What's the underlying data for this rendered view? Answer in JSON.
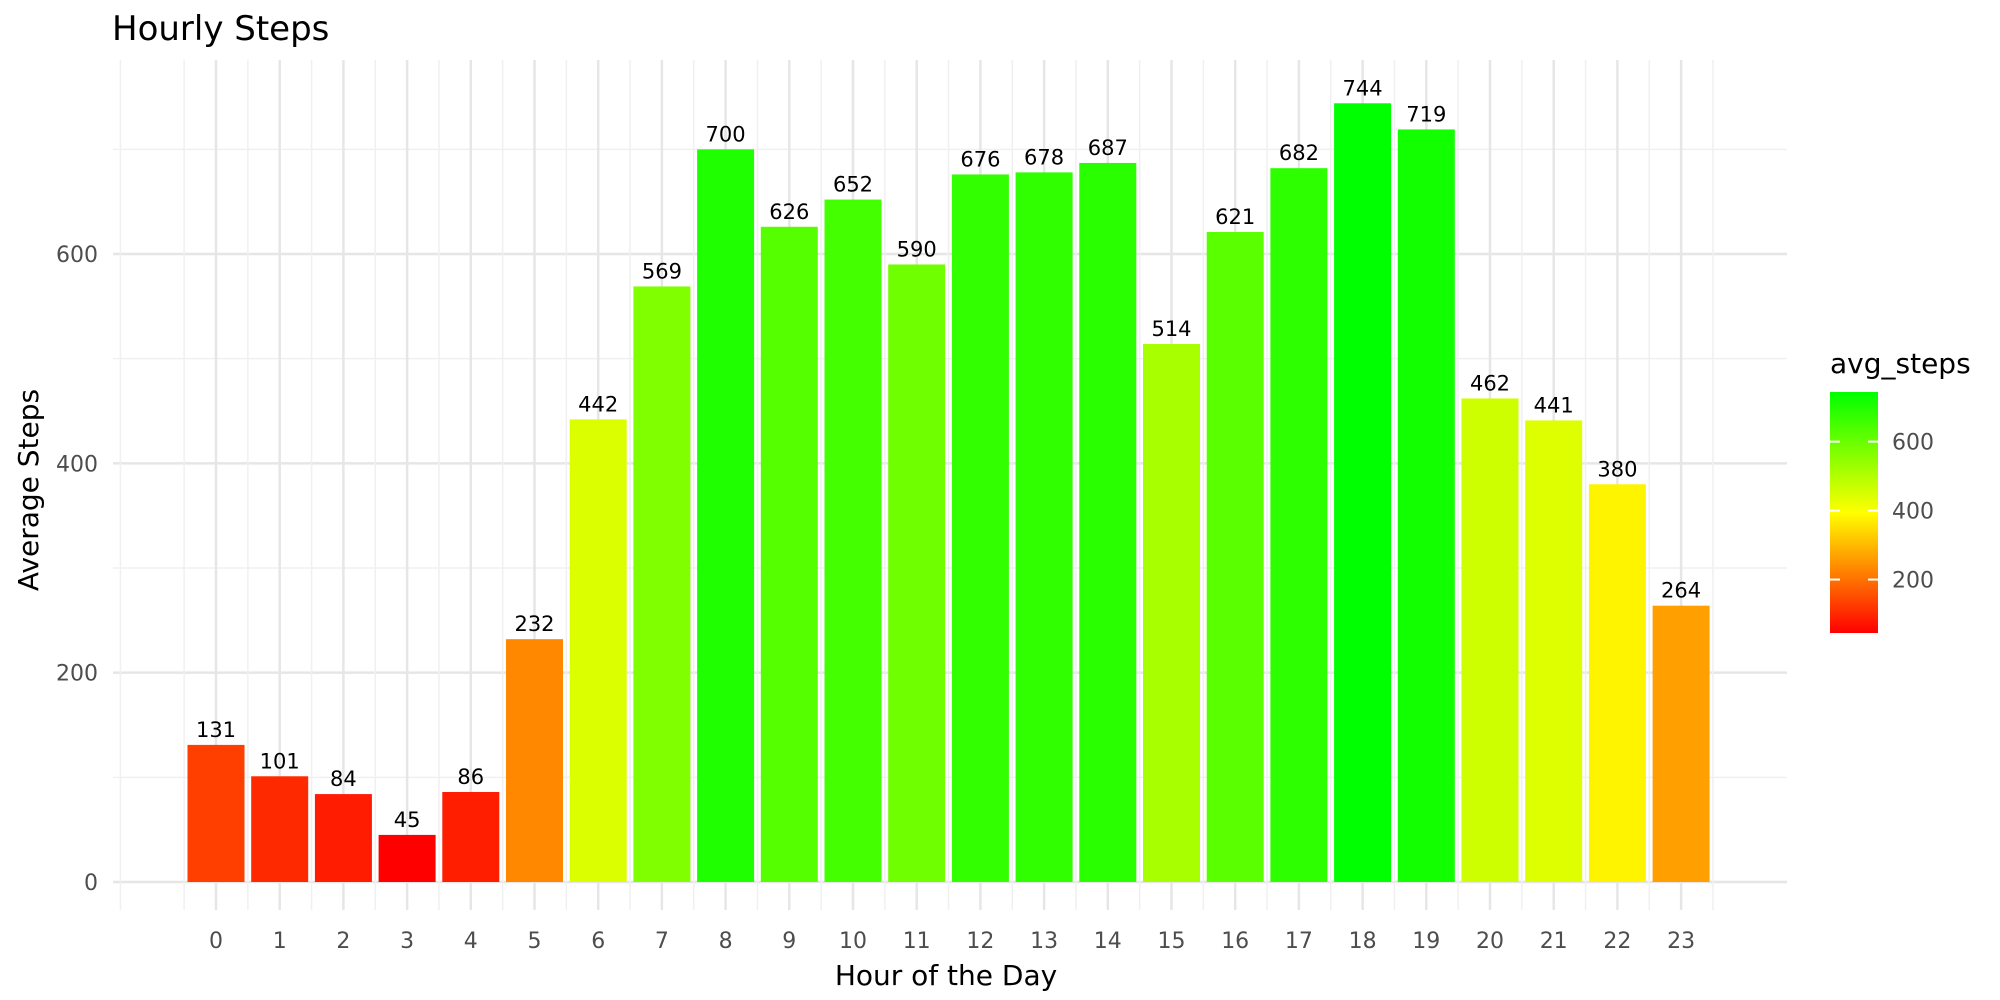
{
  "chart_data": {
    "type": "bar",
    "title": "Hourly Steps",
    "xlabel": "Hour of the Day",
    "ylabel": "Average Steps",
    "categories": [
      "0",
      "1",
      "2",
      "3",
      "4",
      "5",
      "6",
      "7",
      "8",
      "9",
      "10",
      "11",
      "12",
      "13",
      "14",
      "15",
      "16",
      "17",
      "18",
      "19",
      "20",
      "21",
      "22",
      "23"
    ],
    "values": [
      131,
      101,
      84,
      45,
      86,
      232,
      442,
      569,
      700,
      626,
      652,
      590,
      676,
      678,
      687,
      514,
      621,
      682,
      744,
      719,
      462,
      441,
      380,
      264
    ],
    "ylim": [
      0,
      750
    ],
    "yticks": [
      0,
      200,
      400,
      600
    ],
    "grid": true,
    "legend": {
      "title": "avg_steps",
      "placement": "right",
      "ticks": [
        200,
        400,
        600
      ],
      "range": [
        45,
        744
      ],
      "colors": [
        "#ff0000",
        "#ffff00",
        "#00ff00"
      ]
    }
  }
}
